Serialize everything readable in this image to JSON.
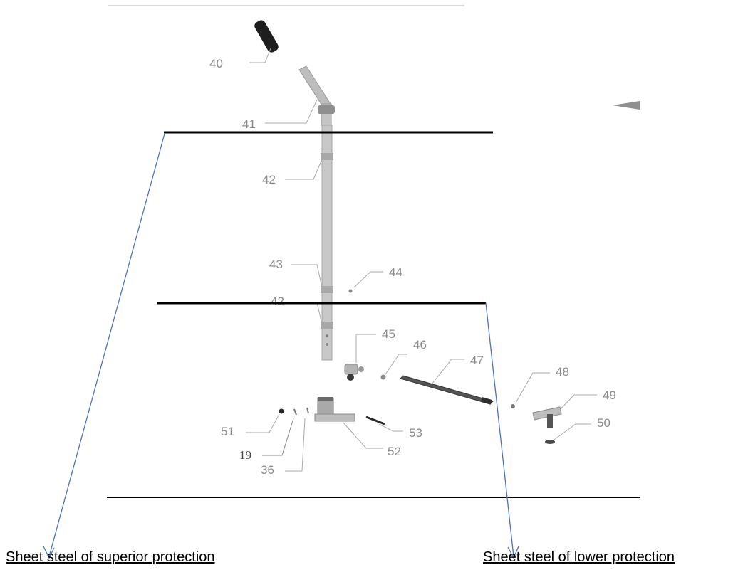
{
  "parts": {
    "p40": "40",
    "p41": "41",
    "p42a": "42",
    "p43": "43",
    "p44": "44",
    "p42b": "42",
    "p45": "45",
    "p46": "46",
    "p47": "47",
    "p48": "48",
    "p49": "49",
    "p50": "50",
    "p51": "51",
    "p19": "19",
    "p36": "36",
    "p52": "52",
    "p53": "53"
  },
  "captions": {
    "superior": "Sheet steel of superior protection",
    "lower": "Sheet steel of lower protection"
  },
  "colors": {
    "arrow": "#4a74b8",
    "boundary_line": "#000000",
    "part_gray": "#9a9a9a",
    "label_gray": "#8a8a8a"
  }
}
